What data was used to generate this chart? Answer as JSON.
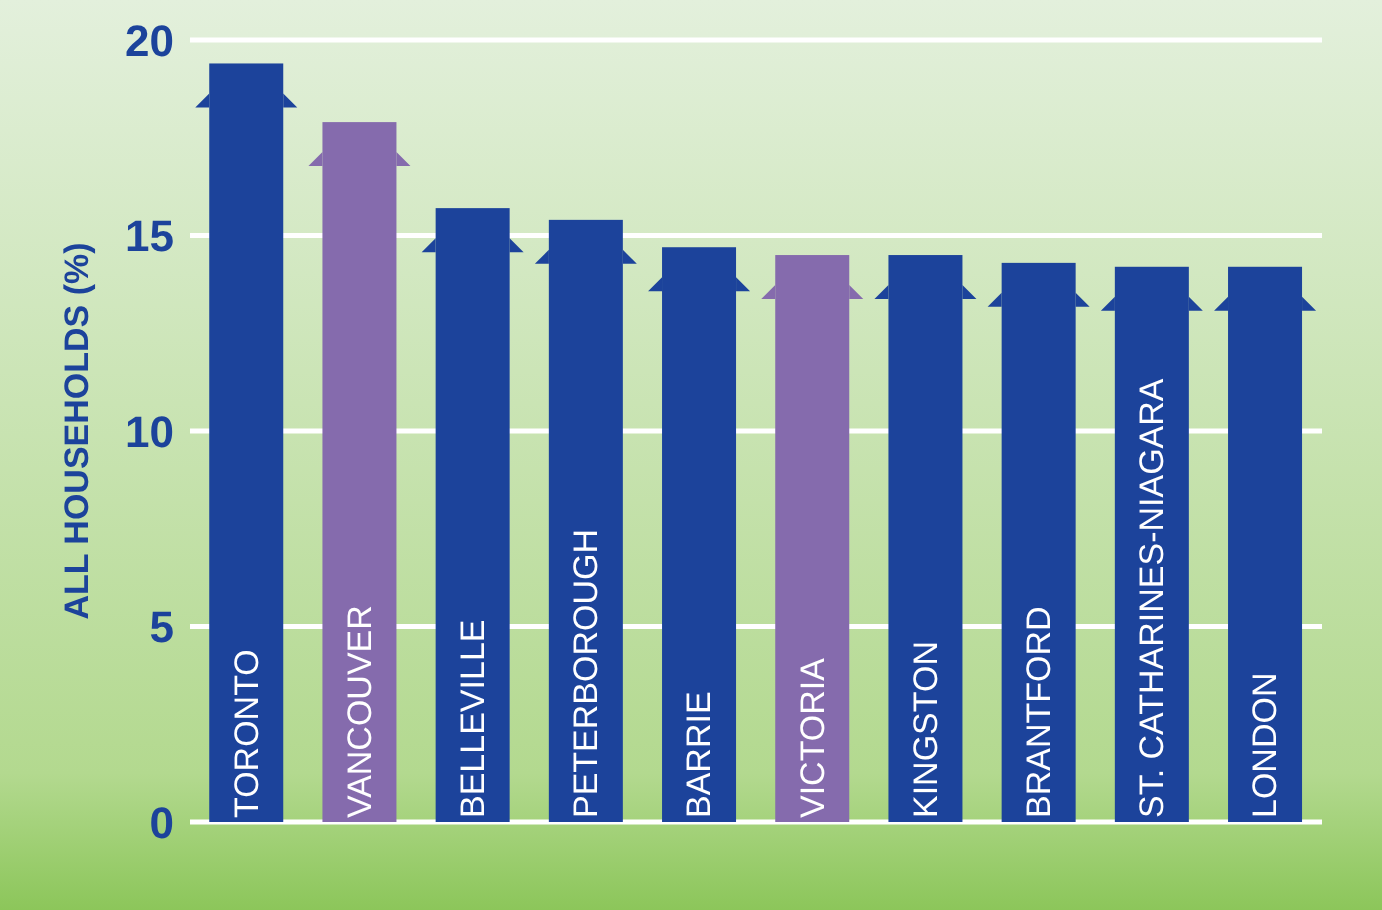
{
  "chart_data": {
    "type": "bar",
    "ylabel": "ALL HOUSEHOLDS (%)",
    "categories": [
      "TORONTO",
      "VANCOUVER",
      "BELLEVILLE",
      "PETERBOROUGH",
      "BARRIE",
      "VICTORIA",
      "KINGSTON",
      "BRANTFORD",
      "ST. CATHARINES-NIAGARA",
      "LONDON"
    ],
    "values": [
      19.4,
      17.9,
      15.7,
      15.4,
      14.7,
      14.5,
      14.5,
      14.3,
      14.2,
      14.2
    ],
    "colors": [
      "#1c439b",
      "#856bad",
      "#1c439b",
      "#1c439b",
      "#1c439b",
      "#856bad",
      "#1c439b",
      "#1c439b",
      "#1c439b",
      "#1c439b"
    ],
    "ylim": [
      0,
      20
    ],
    "yticks": [
      0,
      5,
      10,
      15,
      20
    ],
    "grid": "y"
  }
}
